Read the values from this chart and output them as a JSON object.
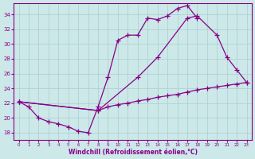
{
  "title": "",
  "xlabel": "Windchill (Refroidissement éolien,°C)",
  "ylabel": "",
  "xlim": [
    -0.5,
    23.5
  ],
  "ylim": [
    17,
    35.5
  ],
  "yticks": [
    18,
    20,
    22,
    24,
    26,
    28,
    30,
    32,
    34
  ],
  "xticks": [
    0,
    1,
    2,
    3,
    4,
    5,
    6,
    7,
    8,
    9,
    10,
    11,
    12,
    13,
    14,
    15,
    16,
    17,
    18,
    19,
    20,
    21,
    22,
    23
  ],
  "bg_color": "#cce8e8",
  "line_color": "#880088",
  "grid_color": "#aacece",
  "line1_x": [
    0,
    1,
    2,
    3,
    4,
    5,
    6,
    7,
    8,
    9,
    10,
    11,
    12,
    13,
    14,
    15,
    16,
    17,
    18
  ],
  "line1_y": [
    22.2,
    21.5,
    20.0,
    19.5,
    19.2,
    18.8,
    18.2,
    18.0,
    21.5,
    25.5,
    30.5,
    31.2,
    31.2,
    33.5,
    33.3,
    33.8,
    34.8,
    35.2,
    33.5
  ],
  "line2_x": [
    0,
    8,
    12,
    14,
    17,
    18,
    20,
    21,
    22,
    23
  ],
  "line2_y": [
    22.2,
    21.0,
    25.5,
    28.2,
    33.5,
    33.8,
    31.2,
    28.2,
    26.5,
    24.8
  ],
  "line3_x": [
    0,
    8,
    9,
    10,
    11,
    12,
    13,
    14,
    15,
    16,
    17,
    18,
    19,
    20,
    21,
    22,
    23
  ],
  "line3_y": [
    22.2,
    21.0,
    21.5,
    21.8,
    22.0,
    22.3,
    22.5,
    22.8,
    23.0,
    23.2,
    23.5,
    23.8,
    24.0,
    24.2,
    24.4,
    24.6,
    24.8
  ]
}
